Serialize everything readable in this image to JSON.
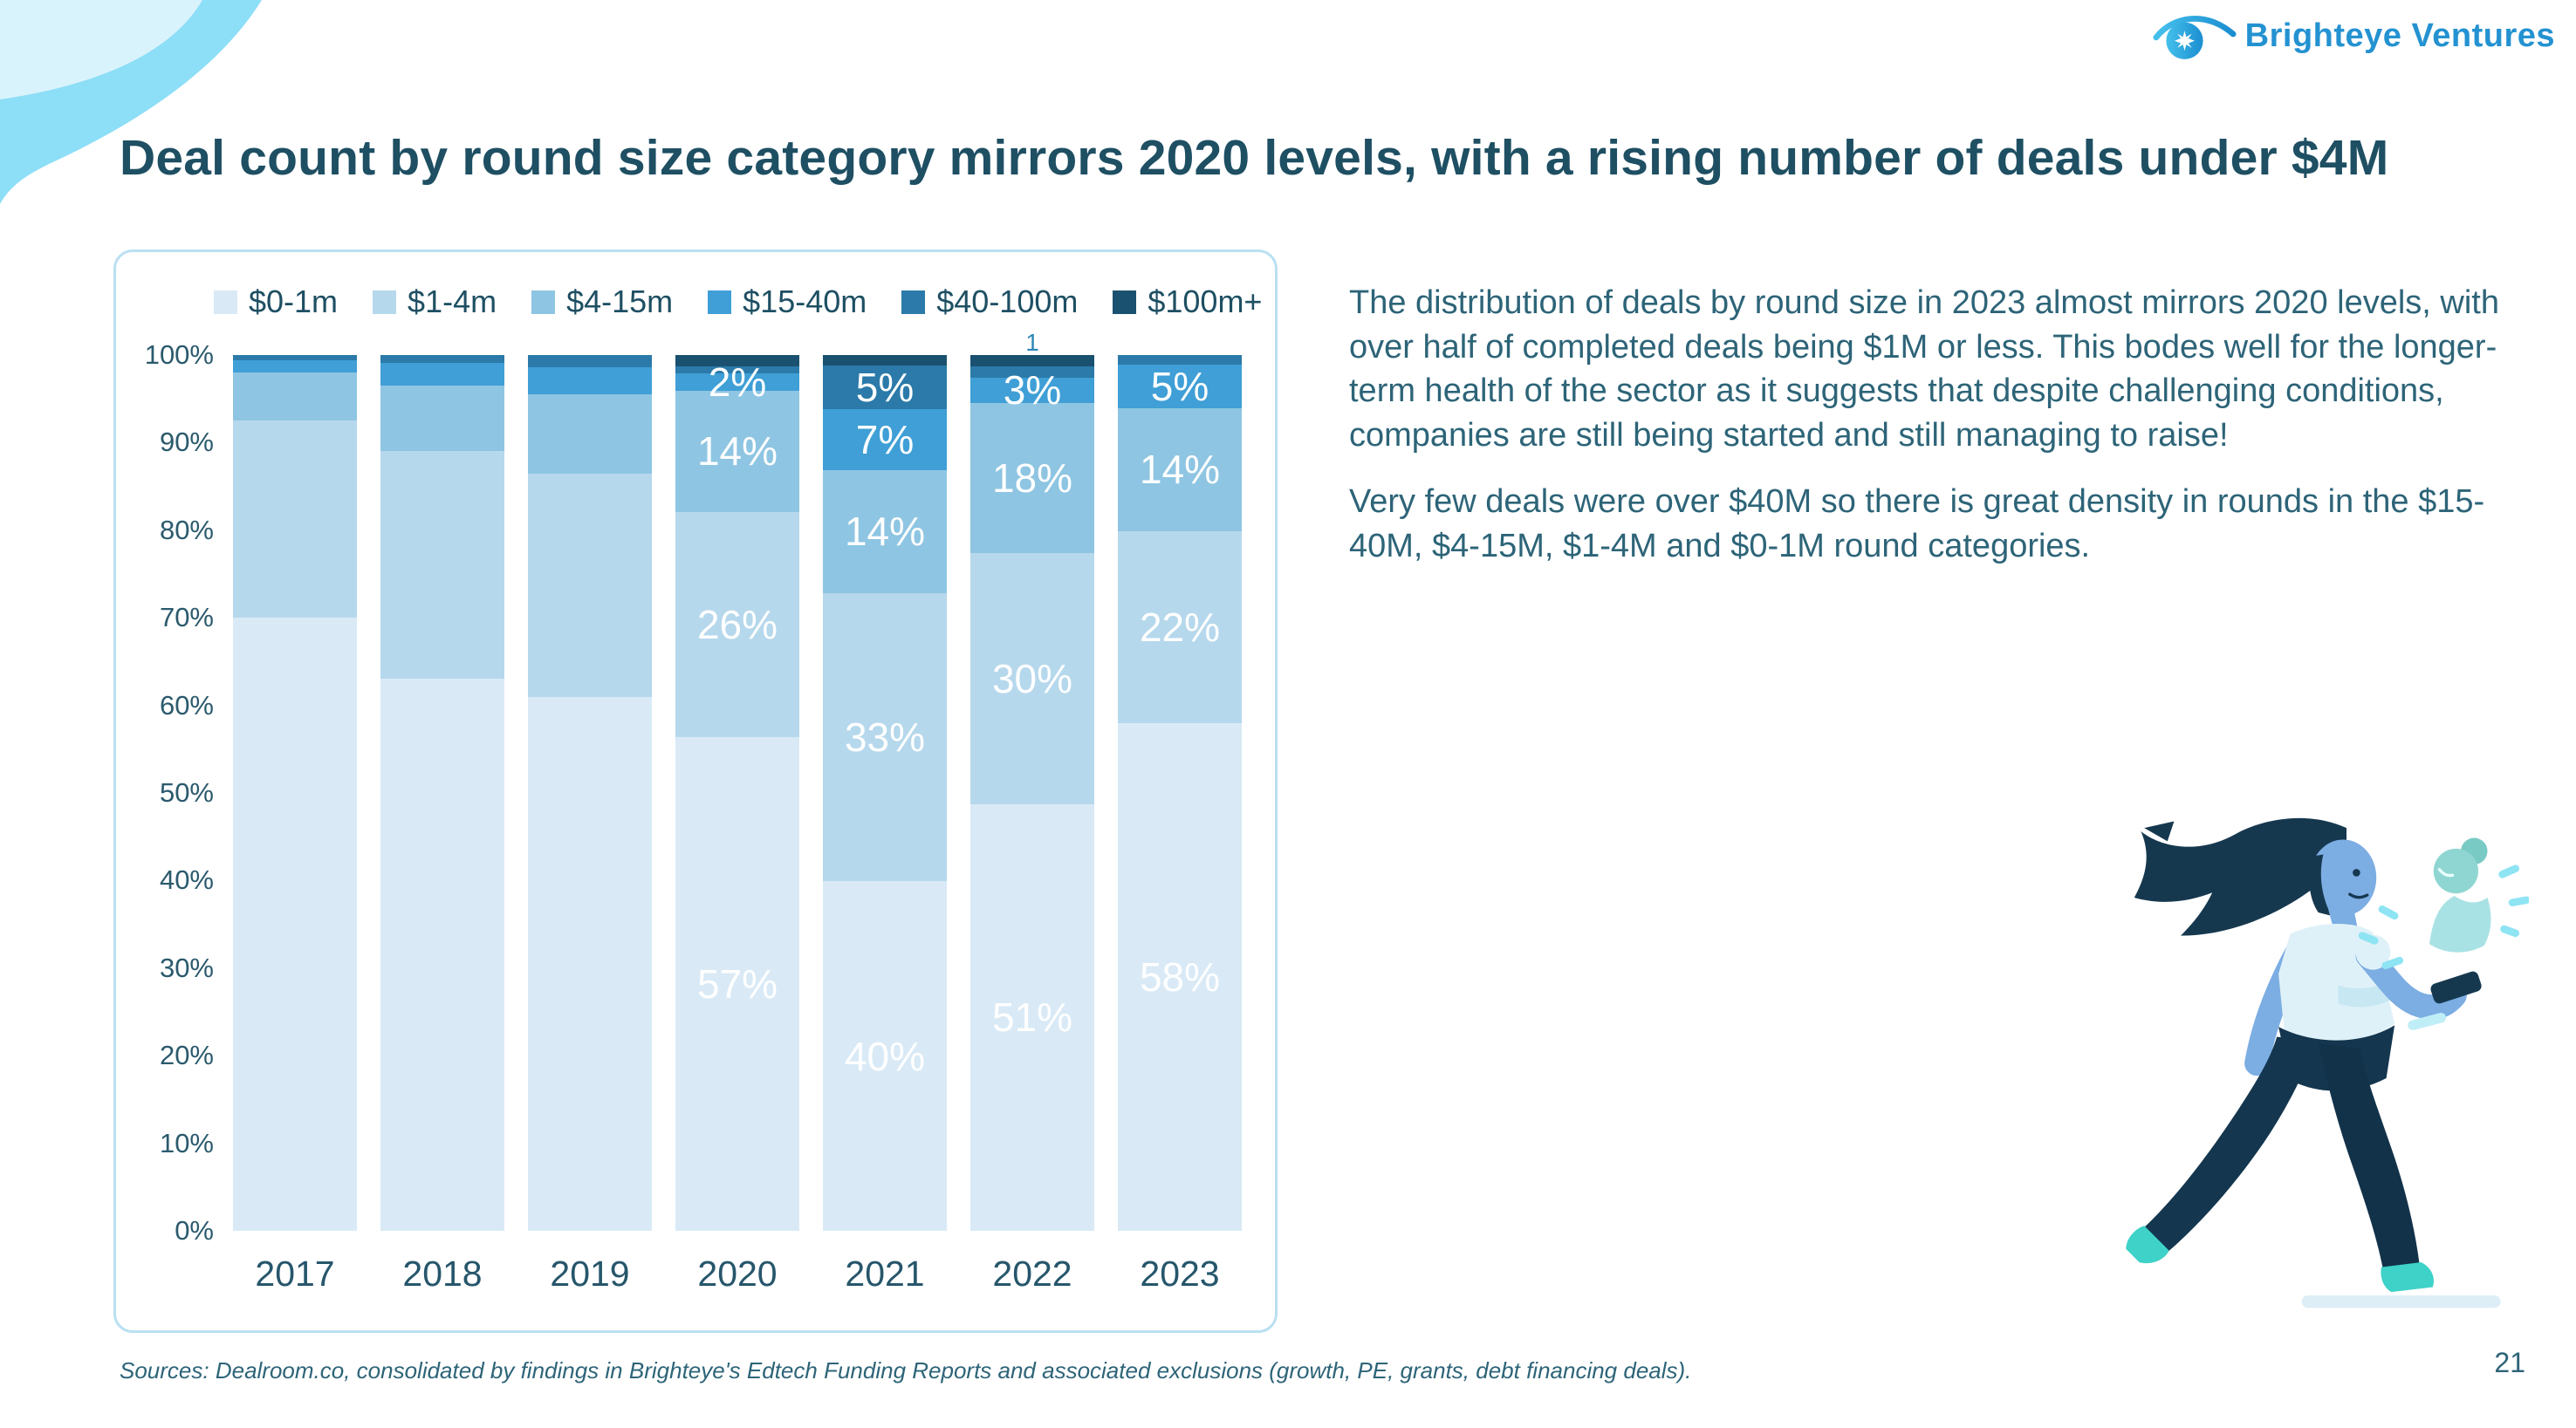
{
  "brand": {
    "name": "Brighteye Ventures",
    "logo_color": "#2ba3dd",
    "text_color": "#2492d1"
  },
  "header": {
    "title": "Deal count by round size category mirrors 2020 levels, with a rising number of deals under $4M"
  },
  "commentary": {
    "paragraphs": [
      "The distribution of deals by round size in 2023 almost mirrors 2020 levels, with over half of completed deals being $1M or less. This bodes well for the longer-term health of the sector as it suggests that despite challenging conditions, companies are still being started and still managing to raise!",
      "Very few deals were over $40M so there is great density in rounds in the $15-40M, $4-15M, $1-4M and $0-1M round categories."
    ]
  },
  "chart_data": {
    "type": "bar",
    "stacked": true,
    "percent": true,
    "title": "",
    "xlabel": "",
    "ylabel": "",
    "ylim": [
      0,
      100
    ],
    "grid": false,
    "legend_position": "top",
    "categories": [
      "2017",
      "2018",
      "2019",
      "2020",
      "2021",
      "2022",
      "2023"
    ],
    "yticks": [
      "0%",
      "10%",
      "20%",
      "30%",
      "40%",
      "50%",
      "60%",
      "70%",
      "80%",
      "90%",
      "100%"
    ],
    "series": [
      {
        "name": "$0-1m",
        "color": "#d9eaf6",
        "values": [
          70,
          63,
          61,
          57,
          40,
          51,
          58
        ],
        "labels": [
          null,
          null,
          null,
          "57%",
          "40%",
          "51%",
          "58%"
        ]
      },
      {
        "name": "$1-4m",
        "color": "#b6d8ec",
        "values": [
          22.5,
          26,
          25.5,
          26,
          33,
          30,
          22
        ],
        "labels": [
          null,
          null,
          null,
          "26%",
          "33%",
          "30%",
          "22%"
        ]
      },
      {
        "name": "$4-15m",
        "color": "#8ec5e2",
        "values": [
          5.5,
          7.5,
          9,
          14,
          14,
          18,
          14
        ],
        "labels": [
          null,
          null,
          null,
          "14%",
          "14%",
          "18%",
          "14%"
        ]
      },
      {
        "name": "$15-40m",
        "color": "#3f9fd6",
        "values": [
          1.4,
          2.6,
          3.1,
          2,
          7,
          3,
          5
        ],
        "labels": [
          null,
          null,
          null,
          "2%",
          "7%",
          "3%",
          "5%"
        ]
      },
      {
        "name": "$40-100m",
        "color": "#2b7aa9",
        "values": [
          0.6,
          0.9,
          1.4,
          0.8,
          5,
          1.4,
          1.1
        ],
        "labels": [
          null,
          null,
          null,
          null,
          "5%",
          null,
          null
        ]
      },
      {
        "name": "$100m+",
        "color": "#1a5170",
        "values": [
          0,
          0,
          0,
          1.3,
          1.2,
          1.3,
          0
        ],
        "labels": [
          null,
          null,
          null,
          null,
          null,
          null,
          null
        ]
      }
    ],
    "overflow_tick_labels": {
      "2022": "1"
    }
  },
  "footer": {
    "sources": "Sources: Dealroom.co, consolidated by findings in Brighteye's Edtech Funding Reports and associated exclusions (growth, PE, grants, debt financing deals).",
    "page_number": "21"
  }
}
